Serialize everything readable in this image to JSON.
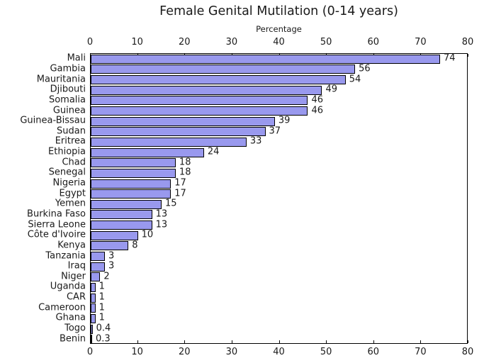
{
  "chart_data": {
    "type": "bar",
    "orientation": "horizontal",
    "title": "Female Genital Mutilation (0-14 years)",
    "xlabel": "Percentage",
    "xlim": [
      0,
      80
    ],
    "xticks": [
      0,
      10,
      20,
      30,
      40,
      50,
      60,
      70,
      80
    ],
    "axis_sides": [
      "top",
      "bottom"
    ],
    "grid": false,
    "legend": "none",
    "bar_color": "#9999ee",
    "bar_edge_color": "#000000",
    "categories": [
      "Mali",
      "Gambia",
      "Mauritania",
      "Djibouti",
      "Somalia",
      "Guinea",
      "Guinea-Bissau",
      "Sudan",
      "Eritrea",
      "Ethiopia",
      "Chad",
      "Senegal",
      "Nigeria",
      "Egypt",
      "Yemen",
      "Burkina Faso",
      "Sierra Leone",
      "Côte d'Ivoire",
      "Kenya",
      "Tanzania",
      "Iraq",
      "Niger",
      "Uganda",
      "CAR",
      "Cameroon",
      "Ghana",
      "Togo",
      "Benin"
    ],
    "values": [
      74,
      56,
      54,
      49,
      46,
      46,
      39,
      37,
      33,
      24,
      18,
      18,
      17,
      17,
      15,
      13,
      13,
      10,
      8,
      3,
      3,
      2,
      1,
      1,
      1,
      1,
      0.4,
      0.3
    ],
    "value_labels": [
      "74",
      "56",
      "54",
      "49",
      "46",
      "46",
      "39",
      "37",
      "33",
      "24",
      "18",
      "18",
      "17",
      "17",
      "15",
      "13",
      "13",
      "10",
      "8",
      "3",
      "3",
      "2",
      "1",
      "1",
      "1",
      "1",
      "0.4",
      "0.3"
    ]
  }
}
